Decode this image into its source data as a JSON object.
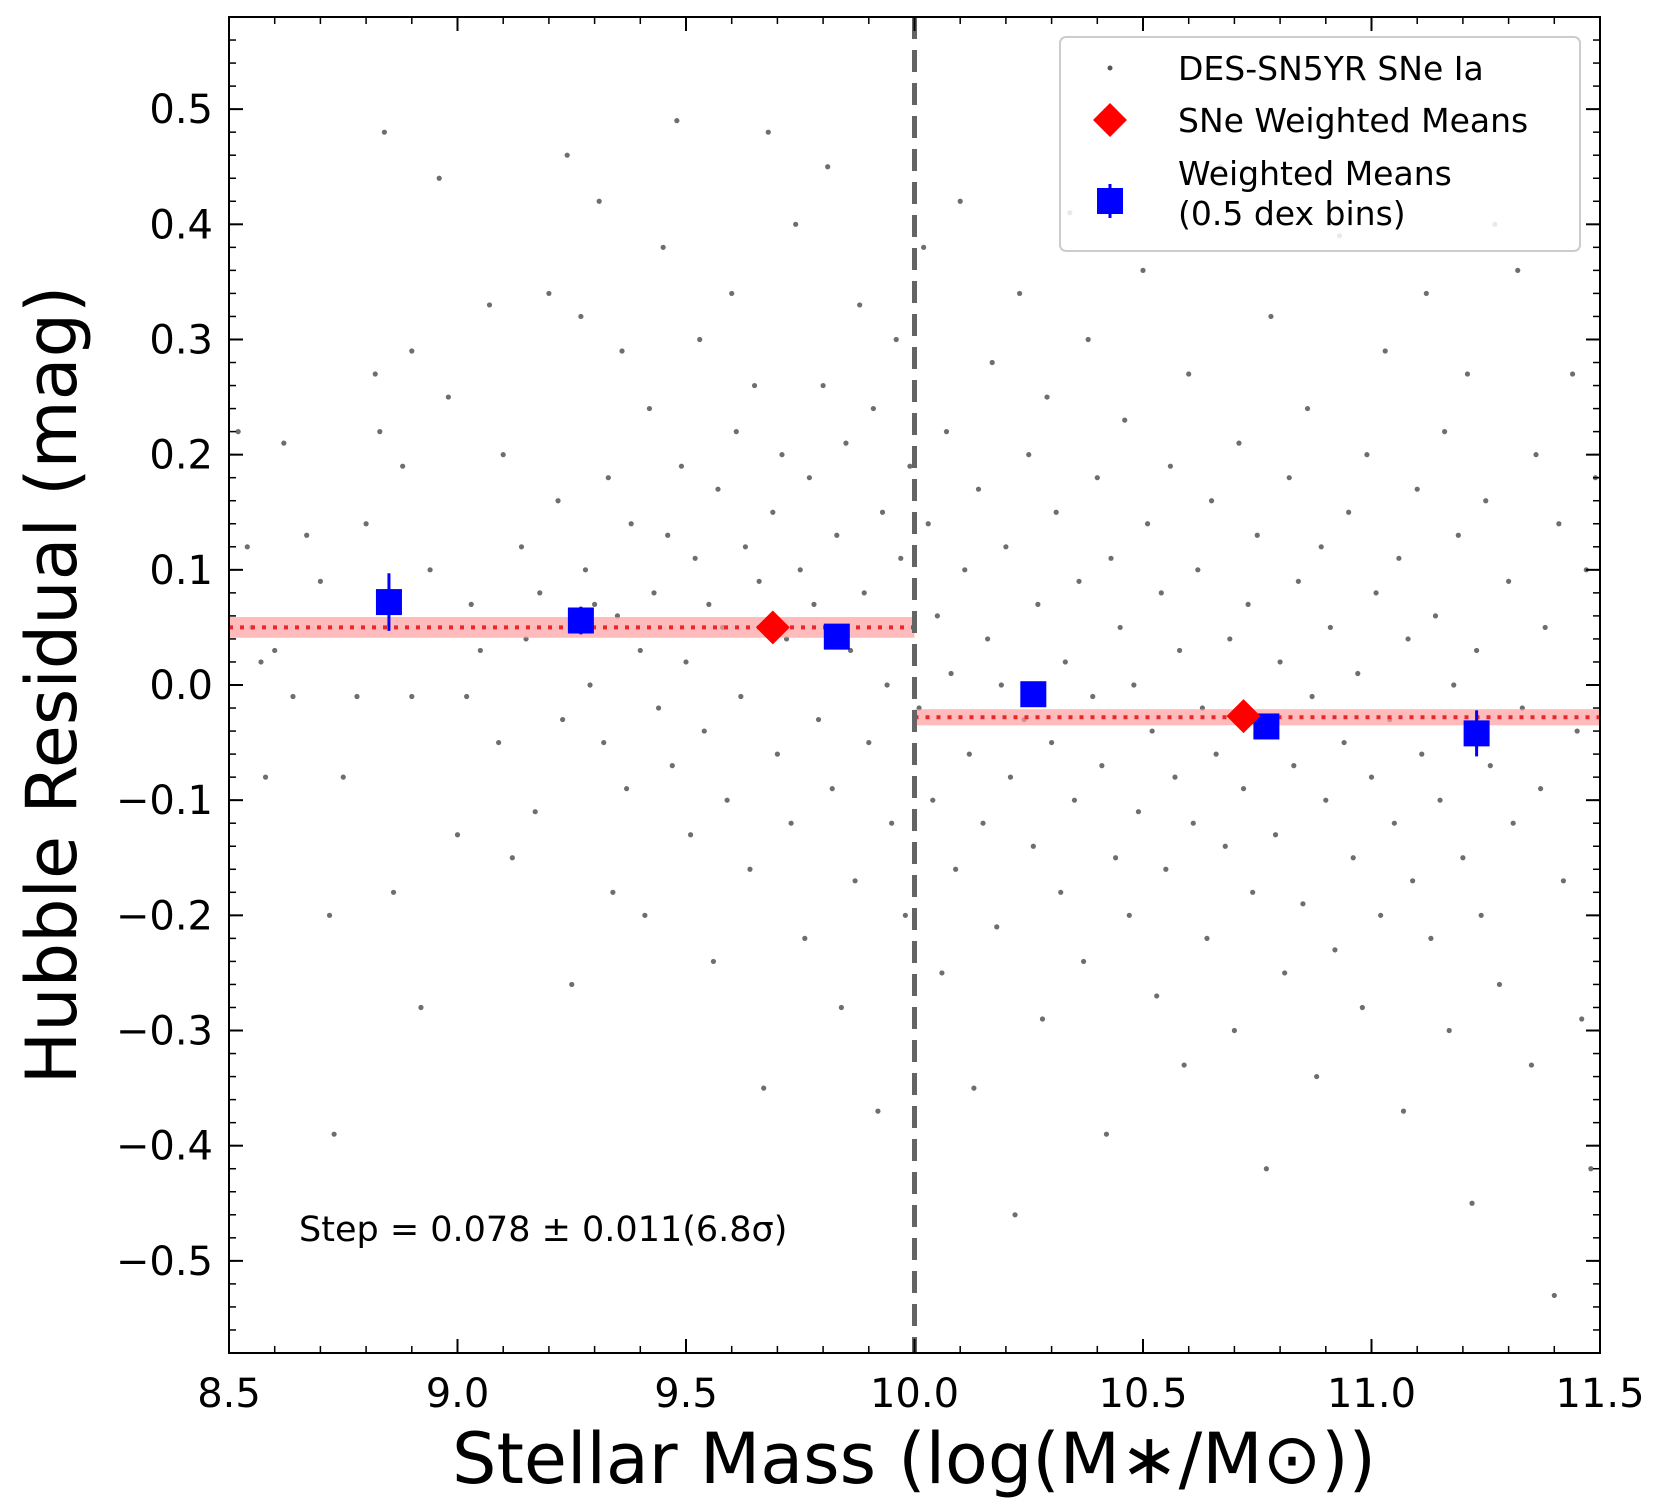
{
  "chart_data": {
    "type": "scatter",
    "xlabel": "Stellar Mass (log(M∗/M⊙))",
    "ylabel": "Hubble Residual (mag)",
    "xlim": [
      8.5,
      11.5
    ],
    "ylim": [
      -0.58,
      0.58
    ],
    "x_ticks": [
      8.5,
      9.0,
      9.5,
      10.0,
      10.5,
      11.0,
      11.5
    ],
    "x_tick_labels": [
      "8.5",
      "9.0",
      "9.5",
      "10.0",
      "10.5",
      "11.0",
      "11.5"
    ],
    "y_ticks": [
      -0.5,
      -0.4,
      -0.3,
      -0.2,
      -0.1,
      0.0,
      0.1,
      0.2,
      0.3,
      0.4,
      0.5
    ],
    "y_tick_labels": [
      "−0.5",
      "−0.4",
      "−0.3",
      "−0.2",
      "−0.1",
      "0.0",
      "0.1",
      "0.2",
      "0.3",
      "0.4",
      "0.5"
    ],
    "grid": false,
    "legend_position": "top-right",
    "mass_split": 10.0,
    "annotation": "Step = 0.078 ± 0.011(6.8σ)",
    "colors": {
      "points": "#555555",
      "sne_means": "#ff0000",
      "binned_means": "#0000ff",
      "band": "#ff9e9e",
      "level_line": "#e8272b",
      "split_line": "#646464"
    },
    "legend": [
      {
        "label": "DES-SN5YR SNe Ia",
        "marker": "dot"
      },
      {
        "label": "SNe Weighted Means",
        "marker": "diamond"
      },
      {
        "label": "Weighted Means",
        "label2": "(0.5 dex bins)",
        "marker": "square-errorbar"
      }
    ],
    "steps": [
      {
        "x_range": [
          8.5,
          10.0
        ],
        "level": 0.05,
        "err": 0.009
      },
      {
        "x_range": [
          10.0,
          11.5
        ],
        "level": -0.028,
        "err": 0.007
      }
    ],
    "sne_weighted_means": [
      {
        "x": 9.69,
        "y": 0.05
      },
      {
        "x": 10.72,
        "y": -0.027
      }
    ],
    "binned_weighted_means": [
      {
        "x": 8.85,
        "y": 0.072,
        "yerr": 0.025
      },
      {
        "x": 9.27,
        "y": 0.056,
        "yerr": 0.012
      },
      {
        "x": 9.83,
        "y": 0.042,
        "yerr": 0.01
      },
      {
        "x": 10.26,
        "y": -0.008,
        "yerr": 0.008
      },
      {
        "x": 10.77,
        "y": -0.036,
        "yerr": 0.008
      },
      {
        "x": 11.23,
        "y": -0.042,
        "yerr": 0.02
      }
    ],
    "scatter_points": [
      [
        8.52,
        0.22
      ],
      [
        8.54,
        0.12
      ],
      [
        8.55,
        0.05
      ],
      [
        8.57,
        0.02
      ],
      [
        8.58,
        -0.08
      ],
      [
        8.6,
        0.03
      ],
      [
        8.62,
        0.21
      ],
      [
        8.64,
        -0.01
      ],
      [
        8.67,
        0.13
      ],
      [
        8.7,
        0.09
      ],
      [
        8.72,
        -0.2
      ],
      [
        8.73,
        -0.39
      ],
      [
        8.75,
        -0.08
      ],
      [
        8.78,
        -0.01
      ],
      [
        8.8,
        0.14
      ],
      [
        8.82,
        0.27
      ],
      [
        8.83,
        0.22
      ],
      [
        8.84,
        0.48
      ],
      [
        8.86,
        -0.18
      ],
      [
        8.88,
        0.19
      ],
      [
        8.9,
        0.29
      ],
      [
        8.9,
        -0.01
      ],
      [
        8.92,
        -0.28
      ],
      [
        8.94,
        0.1
      ],
      [
        8.96,
        0.44
      ],
      [
        8.98,
        0.25
      ],
      [
        9.0,
        -0.13
      ],
      [
        9.02,
        -0.01
      ],
      [
        9.03,
        0.07
      ],
      [
        9.05,
        0.03
      ],
      [
        9.07,
        0.33
      ],
      [
        9.09,
        -0.05
      ],
      [
        9.1,
        0.2
      ],
      [
        9.12,
        -0.15
      ],
      [
        9.14,
        0.12
      ],
      [
        9.15,
        0.04
      ],
      [
        9.17,
        -0.11
      ],
      [
        9.18,
        0.08
      ],
      [
        9.2,
        0.34
      ],
      [
        9.22,
        0.16
      ],
      [
        9.23,
        -0.03
      ],
      [
        9.24,
        0.46
      ],
      [
        9.25,
        -0.26
      ],
      [
        9.27,
        0.32
      ],
      [
        9.28,
        0.1
      ],
      [
        9.29,
        0.0
      ],
      [
        9.3,
        0.07
      ],
      [
        9.31,
        0.42
      ],
      [
        9.32,
        -0.05
      ],
      [
        9.33,
        0.18
      ],
      [
        9.34,
        -0.18
      ],
      [
        9.35,
        0.06
      ],
      [
        9.36,
        0.29
      ],
      [
        9.37,
        -0.09
      ],
      [
        9.38,
        0.14
      ],
      [
        9.4,
        0.03
      ],
      [
        9.41,
        -0.2
      ],
      [
        9.42,
        0.24
      ],
      [
        9.43,
        0.08
      ],
      [
        9.44,
        -0.02
      ],
      [
        9.45,
        0.38
      ],
      [
        9.46,
        0.13
      ],
      [
        9.47,
        -0.07
      ],
      [
        9.48,
        0.49
      ],
      [
        9.49,
        0.19
      ],
      [
        9.5,
        0.02
      ],
      [
        9.51,
        -0.13
      ],
      [
        9.52,
        0.11
      ],
      [
        9.53,
        0.3
      ],
      [
        9.54,
        -0.04
      ],
      [
        9.55,
        0.07
      ],
      [
        9.56,
        -0.24
      ],
      [
        9.57,
        0.17
      ],
      [
        9.58,
        0.05
      ],
      [
        9.59,
        -0.1
      ],
      [
        9.6,
        0.34
      ],
      [
        9.61,
        0.22
      ],
      [
        9.62,
        -0.01
      ],
      [
        9.63,
        0.12
      ],
      [
        9.64,
        -0.16
      ],
      [
        9.65,
        0.26
      ],
      [
        9.66,
        0.09
      ],
      [
        9.67,
        -0.35
      ],
      [
        9.68,
        0.48
      ],
      [
        9.69,
        0.15
      ],
      [
        9.7,
        -0.06
      ],
      [
        9.71,
        0.2
      ],
      [
        9.72,
        0.04
      ],
      [
        9.73,
        -0.12
      ],
      [
        9.74,
        0.4
      ],
      [
        9.75,
        0.1
      ],
      [
        9.76,
        -0.22
      ],
      [
        9.77,
        0.18
      ],
      [
        9.78,
        0.07
      ],
      [
        9.79,
        -0.03
      ],
      [
        9.8,
        0.26
      ],
      [
        9.81,
        0.45
      ],
      [
        9.82,
        -0.09
      ],
      [
        9.83,
        0.13
      ],
      [
        9.84,
        -0.28
      ],
      [
        9.85,
        0.21
      ],
      [
        9.86,
        0.03
      ],
      [
        9.87,
        -0.17
      ],
      [
        9.88,
        0.33
      ],
      [
        9.89,
        0.08
      ],
      [
        9.9,
        -0.05
      ],
      [
        9.91,
        0.24
      ],
      [
        9.92,
        -0.37
      ],
      [
        9.93,
        0.15
      ],
      [
        9.94,
        0.0
      ],
      [
        9.95,
        -0.12
      ],
      [
        9.96,
        0.3
      ],
      [
        9.97,
        0.11
      ],
      [
        9.98,
        -0.2
      ],
      [
        9.99,
        0.19
      ],
      [
        10.01,
        -0.02
      ],
      [
        10.02,
        0.38
      ],
      [
        10.03,
        0.14
      ],
      [
        10.04,
        -0.1
      ],
      [
        10.05,
        0.06
      ],
      [
        10.06,
        -0.25
      ],
      [
        10.07,
        0.22
      ],
      [
        10.08,
        0.01
      ],
      [
        10.09,
        -0.16
      ],
      [
        10.1,
        0.42
      ],
      [
        10.11,
        0.1
      ],
      [
        10.12,
        -0.06
      ],
      [
        10.13,
        -0.35
      ],
      [
        10.14,
        0.17
      ],
      [
        10.15,
        -0.12
      ],
      [
        10.16,
        0.04
      ],
      [
        10.17,
        0.28
      ],
      [
        10.18,
        -0.21
      ],
      [
        10.19,
        0.0
      ],
      [
        10.2,
        0.12
      ],
      [
        10.21,
        -0.08
      ],
      [
        10.22,
        -0.46
      ],
      [
        10.23,
        0.34
      ],
      [
        10.24,
        -0.03
      ],
      [
        10.25,
        0.2
      ],
      [
        10.26,
        -0.14
      ],
      [
        10.27,
        0.07
      ],
      [
        10.28,
        -0.29
      ],
      [
        10.29,
        0.25
      ],
      [
        10.3,
        -0.05
      ],
      [
        10.31,
        0.15
      ],
      [
        10.32,
        -0.18
      ],
      [
        10.33,
        0.02
      ],
      [
        10.34,
        0.41
      ],
      [
        10.35,
        -0.1
      ],
      [
        10.36,
        0.09
      ],
      [
        10.37,
        -0.24
      ],
      [
        10.38,
        0.3
      ],
      [
        10.39,
        -0.01
      ],
      [
        10.4,
        0.18
      ],
      [
        10.41,
        -0.07
      ],
      [
        10.42,
        -0.39
      ],
      [
        10.43,
        0.11
      ],
      [
        10.44,
        -0.15
      ],
      [
        10.45,
        0.05
      ],
      [
        10.46,
        0.23
      ],
      [
        10.47,
        -0.2
      ],
      [
        10.48,
        0.0
      ],
      [
        10.49,
        -0.11
      ],
      [
        10.5,
        0.36
      ],
      [
        10.51,
        0.14
      ],
      [
        10.52,
        -0.04
      ],
      [
        10.53,
        -0.27
      ],
      [
        10.54,
        0.08
      ],
      [
        10.55,
        -0.16
      ],
      [
        10.56,
        0.19
      ],
      [
        10.57,
        -0.08
      ],
      [
        10.58,
        0.03
      ],
      [
        10.59,
        -0.33
      ],
      [
        10.6,
        0.27
      ],
      [
        10.61,
        -0.12
      ],
      [
        10.62,
        0.1
      ],
      [
        10.63,
        -0.02
      ],
      [
        10.64,
        -0.22
      ],
      [
        10.65,
        0.16
      ],
      [
        10.66,
        -0.06
      ],
      [
        10.67,
        0.45
      ],
      [
        10.68,
        -0.14
      ],
      [
        10.69,
        0.04
      ],
      [
        10.7,
        -0.3
      ],
      [
        10.71,
        0.21
      ],
      [
        10.72,
        -0.09
      ],
      [
        10.73,
        0.07
      ],
      [
        10.74,
        -0.18
      ],
      [
        10.75,
        0.13
      ],
      [
        10.76,
        -0.04
      ],
      [
        10.77,
        -0.42
      ],
      [
        10.78,
        0.32
      ],
      [
        10.79,
        -0.13
      ],
      [
        10.8,
        0.02
      ],
      [
        10.81,
        -0.25
      ],
      [
        10.82,
        0.18
      ],
      [
        10.83,
        -0.07
      ],
      [
        10.84,
        0.09
      ],
      [
        10.85,
        -0.19
      ],
      [
        10.86,
        0.24
      ],
      [
        10.87,
        -0.01
      ],
      [
        10.88,
        -0.34
      ],
      [
        10.89,
        0.12
      ],
      [
        10.9,
        -0.1
      ],
      [
        10.91,
        0.05
      ],
      [
        10.92,
        -0.23
      ],
      [
        10.93,
        0.39
      ],
      [
        10.94,
        -0.05
      ],
      [
        10.95,
        0.15
      ],
      [
        10.96,
        -0.15
      ],
      [
        10.97,
        0.01
      ],
      [
        10.98,
        -0.28
      ],
      [
        10.99,
        0.2
      ],
      [
        11.0,
        -0.08
      ],
      [
        11.01,
        0.08
      ],
      [
        11.02,
        -0.2
      ],
      [
        11.03,
        0.29
      ],
      [
        11.04,
        -0.03
      ],
      [
        11.05,
        -0.12
      ],
      [
        11.06,
        0.11
      ],
      [
        11.07,
        -0.37
      ],
      [
        11.08,
        0.04
      ],
      [
        11.09,
        -0.17
      ],
      [
        11.1,
        0.17
      ],
      [
        11.11,
        -0.06
      ],
      [
        11.12,
        0.34
      ],
      [
        11.13,
        -0.22
      ],
      [
        11.14,
        0.06
      ],
      [
        11.15,
        -0.1
      ],
      [
        11.16,
        0.22
      ],
      [
        11.17,
        -0.3
      ],
      [
        11.18,
        0.0
      ],
      [
        11.19,
        0.13
      ],
      [
        11.2,
        -0.15
      ],
      [
        11.21,
        0.27
      ],
      [
        11.22,
        -0.45
      ],
      [
        11.23,
        0.03
      ],
      [
        11.24,
        -0.2
      ],
      [
        11.25,
        0.16
      ],
      [
        11.26,
        -0.07
      ],
      [
        11.27,
        0.4
      ],
      [
        11.28,
        -0.26
      ],
      [
        11.3,
        0.09
      ],
      [
        11.31,
        -0.12
      ],
      [
        11.32,
        0.36
      ],
      [
        11.33,
        -0.02
      ],
      [
        11.35,
        -0.33
      ],
      [
        11.36,
        0.2
      ],
      [
        11.37,
        -0.09
      ],
      [
        11.38,
        0.05
      ],
      [
        11.4,
        -0.53
      ],
      [
        11.41,
        0.14
      ],
      [
        11.42,
        -0.17
      ],
      [
        11.44,
        0.27
      ],
      [
        11.45,
        -0.04
      ],
      [
        11.46,
        -0.29
      ],
      [
        11.47,
        0.1
      ],
      [
        11.48,
        -0.42
      ],
      [
        11.49,
        0.18
      ]
    ]
  }
}
